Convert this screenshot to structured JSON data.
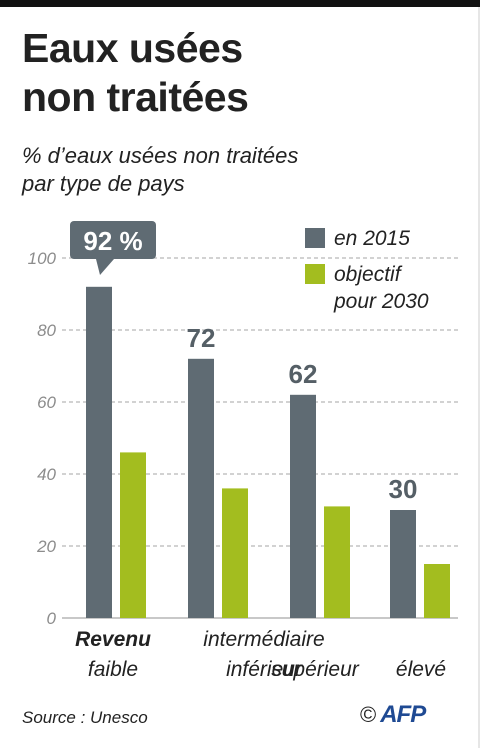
{
  "header": {
    "title_lines": [
      "Eaux usées",
      "non traitées"
    ],
    "subtitle_lines": [
      "% d’eaux usées non traitées",
      "par type de pays"
    ]
  },
  "chart_data": {
    "type": "bar",
    "title": "Eaux usées non traitées",
    "subtitle": "% d’eaux usées non traitées par type de pays",
    "categories": [
      "faible",
      "intermédiaire inférieur",
      "supérieur",
      "élevé"
    ],
    "category_labels": [
      [
        "Revenu",
        "faible"
      ],
      [
        "intermédiaire",
        "inférieur"
      ],
      [
        "",
        "supérieur"
      ],
      [
        "",
        "élevé"
      ]
    ],
    "category_prefix": "Revenu",
    "series": [
      {
        "name": "en 2015",
        "values": [
          92,
          72,
          62,
          30
        ],
        "color": "#5f6b73"
      },
      {
        "name": "objectif pour 2030",
        "values": [
          46,
          36,
          31,
          15
        ],
        "color": "#a3bd1f"
      }
    ],
    "data_labels": [
      "92 %",
      "72",
      "62",
      "30"
    ],
    "legend": [
      {
        "lines": [
          "en 2015"
        ],
        "color": "#5f6b73"
      },
      {
        "lines": [
          "objectif",
          "pour 2030"
        ],
        "color": "#a3bd1f"
      }
    ],
    "legend_position": "top-right",
    "yticks": [
      0,
      20,
      40,
      60,
      80,
      100
    ],
    "ylim": [
      0,
      100
    ],
    "grid": true,
    "xlabel": "",
    "ylabel": ""
  },
  "footer": {
    "source": "Source : Unesco",
    "copyright": "©",
    "logo_text": "AFP"
  },
  "colors": {
    "grid": "#a6a6a6",
    "tick_text": "#8c8c8c",
    "callout_bg": "#5f6b73"
  }
}
